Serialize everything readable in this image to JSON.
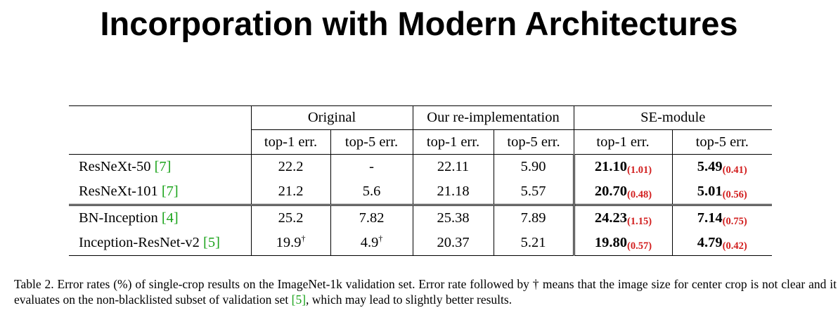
{
  "title": "Incorporation with Modern Architectures",
  "table": {
    "groups": [
      "Original",
      "Our re-implementation",
      "SE-module"
    ],
    "metrics": [
      "top-1 err.",
      "top-5 err.",
      "top-1 err.",
      "top-5 err.",
      "top-1 err.",
      "top-5 err."
    ],
    "rows": [
      {
        "model": "ResNeXt-50 ",
        "ref": "[7]",
        "original_top1": "22.2",
        "original_top5": "-",
        "reimpl_top1": "22.11",
        "reimpl_top5": "5.90",
        "se_top1": "21.10",
        "se_top1_delta": "(1.01)",
        "se_top5": "5.49",
        "se_top5_delta": "(0.41)"
      },
      {
        "model": "ResNeXt-101 ",
        "ref": "[7]",
        "original_top1": "21.2",
        "original_top5": "5.6",
        "reimpl_top1": "21.18",
        "reimpl_top5": "5.57",
        "se_top1": "20.70",
        "se_top1_delta": "(0.48)",
        "se_top5": "5.01",
        "se_top5_delta": "(0.56)"
      },
      {
        "model": "BN-Inception ",
        "ref": "[4]",
        "original_top1": "25.2",
        "original_top5": "7.82",
        "reimpl_top1": "25.38",
        "reimpl_top5": "7.89",
        "se_top1": "24.23",
        "se_top1_delta": "(1.15)",
        "se_top5": "7.14",
        "se_top5_delta": "(0.75)"
      },
      {
        "model": "Inception-ResNet-v2 ",
        "ref": "[5]",
        "original_top1": "19.9",
        "original_top1_mark": "†",
        "original_top5": "4.9",
        "original_top5_mark": "†",
        "reimpl_top1": "20.37",
        "reimpl_top5": "5.21",
        "se_top1": "19.80",
        "se_top1_delta": "(0.57)",
        "se_top5": "4.79",
        "se_top5_delta": "(0.42)"
      }
    ]
  },
  "caption": {
    "part1": "Table 2. Error rates (%) of single-crop results on the ImageNet-1k validation set. Error rate followed by † means that the image size for center crop is not clear and it evaluates on the non-blacklisted subset of validation set ",
    "ref": "[5]",
    "part2": ", which may lead to slightly better results."
  },
  "colors": {
    "reference_link": "#1aa31a",
    "improvement_delta": "#d21e1e"
  }
}
